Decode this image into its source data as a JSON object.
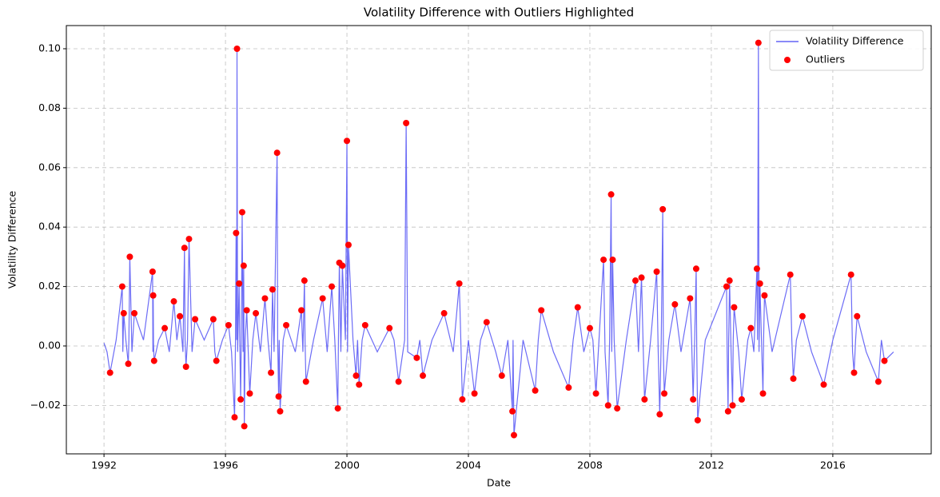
{
  "chart_data": {
    "type": "line",
    "title": "Volatility Difference with Outliers Highlighted",
    "x_label": "Date",
    "y_label": "Volatility Difference",
    "xlim": [
      1990.76,
      2019.24
    ],
    "xticks": [
      1992,
      1996,
      2000,
      2004,
      2008,
      2012,
      2016
    ],
    "ylim": [
      -0.0363,
      0.1078
    ],
    "yticks": [
      {
        "value": -0.02,
        "label": "−0.02"
      },
      {
        "value": 0,
        "label": "0.00"
      },
      {
        "value": 0.02,
        "label": "0.02"
      },
      {
        "value": 0.04,
        "label": "0.04"
      },
      {
        "value": 0.06,
        "label": "0.06"
      },
      {
        "value": 0.08,
        "label": "0.08"
      },
      {
        "value": 0.1,
        "label": "0.10"
      }
    ],
    "grid": true,
    "legend": "upper right",
    "series": [
      {
        "name": "Volatility Difference",
        "type": "line",
        "color": "#6464f5",
        "x": [
          1992.0,
          1992.1,
          1992.2,
          1992.4,
          1992.6,
          1992.62,
          1992.65,
          1992.72,
          1992.8,
          1992.82,
          1992.85,
          1992.92,
          1993.0,
          1993.3,
          1993.6,
          1993.61,
          1993.62,
          1993.63,
          1993.65,
          1993.8,
          1994.0,
          1994.15,
          1994.3,
          1994.4,
          1994.5,
          1994.6,
          1994.65,
          1994.67,
          1994.7,
          1994.75,
          1994.8,
          1994.9,
          1995.0,
          1995.3,
          1995.6,
          1995.65,
          1995.7,
          1995.9,
          1996.1,
          1996.2,
          1996.3,
          1996.33,
          1996.35,
          1996.37,
          1996.38,
          1996.4,
          1996.45,
          1996.47,
          1996.5,
          1996.52,
          1996.55,
          1996.58,
          1996.6,
          1996.61,
          1996.62,
          1996.65,
          1996.7,
          1996.75,
          1996.8,
          1996.9,
          1997.0,
          1997.15,
          1997.3,
          1997.4,
          1997.5,
          1997.52,
          1997.55,
          1997.6,
          1997.7,
          1997.72,
          1997.75,
          1997.77,
          1997.8,
          1997.9,
          1998.0,
          1998.3,
          1998.5,
          1998.55,
          1998.6,
          1998.62,
          1998.65,
          1998.9,
          1999.2,
          1999.35,
          1999.5,
          1999.6,
          1999.7,
          1999.72,
          1999.75,
          1999.8,
          1999.85,
          1999.95,
          2000.0,
          2000.02,
          2000.05,
          2000.2,
          2000.3,
          2000.35,
          2000.4,
          2000.5,
          2000.6,
          2001.0,
          2001.4,
          2001.55,
          2001.7,
          2001.9,
          2001.95,
          2002.0,
          2002.3,
          2002.4,
          2002.5,
          2002.8,
          2003.2,
          2003.5,
          2003.7,
          2003.75,
          2003.8,
          2004.0,
          2004.2,
          2004.4,
          2004.6,
          2004.9,
          2005.1,
          2005.3,
          2005.45,
          2005.47,
          2005.5,
          2005.8,
          2006.2,
          2006.3,
          2006.4,
          2006.8,
          2007.3,
          2007.45,
          2007.6,
          2007.8,
          2008.0,
          2008.1,
          2008.2,
          2008.3,
          2008.45,
          2008.5,
          2008.6,
          2008.65,
          2008.7,
          2008.72,
          2008.75,
          2008.8,
          2008.9,
          2009.2,
          2009.5,
          2009.6,
          2009.7,
          2009.75,
          2009.8,
          2010.0,
          2010.2,
          2010.25,
          2010.3,
          2010.35,
          2010.4,
          2010.42,
          2010.45,
          2010.6,
          2010.8,
          2011.0,
          2011.3,
          2011.35,
          2011.4,
          2011.45,
          2011.5,
          2011.52,
          2011.55,
          2011.8,
          2012.5,
          2012.52,
          2012.55,
          2012.57,
          2012.6,
          2012.65,
          2012.7,
          2012.72,
          2012.75,
          2012.9,
          2013.0,
          2013.2,
          2013.3,
          2013.4,
          2013.5,
          2013.52,
          2013.55,
          2013.57,
          2013.6,
          2013.65,
          2013.7,
          2013.72,
          2013.75,
          2014.0,
          2014.6,
          2014.65,
          2014.7,
          2014.8,
          2015.0,
          2015.3,
          2015.7,
          2016.0,
          2016.6,
          2016.65,
          2016.7,
          2016.75,
          2016.8,
          2017.1,
          2017.5,
          2017.6,
          2017.7,
          2018.0
        ],
        "values": [
          0.001,
          -0.002,
          -0.009,
          0.002,
          0.02,
          -0.002,
          0.011,
          0.002,
          -0.006,
          0.002,
          0.03,
          -0.002,
          0.011,
          0.002,
          0.025,
          -0.002,
          0.017,
          0.001,
          -0.005,
          0.002,
          0.006,
          -0.002,
          0.015,
          0.002,
          0.01,
          -0.002,
          0.033,
          0.002,
          -0.007,
          0.002,
          0.036,
          -0.002,
          0.009,
          0.002,
          0.009,
          -0.002,
          -0.005,
          0.002,
          0.007,
          -0.002,
          -0.024,
          0.002,
          0.038,
          0.002,
          0.1,
          -0.002,
          0.021,
          0.002,
          -0.018,
          0.002,
          0.045,
          -0.002,
          0.027,
          0.002,
          -0.027,
          0.002,
          0.012,
          -0.002,
          -0.016,
          0.002,
          0.011,
          -0.002,
          0.016,
          0.002,
          -0.009,
          0.002,
          0.019,
          -0.002,
          0.065,
          0.002,
          -0.017,
          0.002,
          -0.022,
          0.002,
          0.007,
          -0.002,
          0.012,
          -0.002,
          0.022,
          0.002,
          -0.012,
          0.002,
          0.016,
          -0.002,
          0.02,
          0.002,
          -0.021,
          0.002,
          0.028,
          -0.002,
          0.027,
          0.002,
          0.069,
          -0.002,
          0.034,
          0.002,
          -0.01,
          0.002,
          -0.013,
          0.002,
          0.007,
          -0.002,
          0.006,
          0.002,
          -0.012,
          0.002,
          0.075,
          -0.002,
          -0.004,
          0.002,
          -0.01,
          0.002,
          0.011,
          -0.002,
          0.021,
          0.002,
          -0.018,
          0.002,
          -0.016,
          0.002,
          0.008,
          -0.002,
          -0.01,
          0.002,
          -0.022,
          0.002,
          -0.03,
          0.002,
          -0.015,
          0.002,
          0.012,
          -0.002,
          -0.014,
          0.002,
          0.013,
          -0.002,
          0.006,
          0.002,
          -0.016,
          0.002,
          0.029,
          -0.002,
          -0.02,
          0.002,
          0.051,
          -0.002,
          0.029,
          0.002,
          -0.021,
          0.002,
          0.022,
          -0.002,
          0.023,
          0.002,
          -0.018,
          0.002,
          0.025,
          -0.002,
          -0.023,
          0.002,
          0.046,
          -0.002,
          -0.016,
          0.002,
          0.014,
          -0.002,
          0.016,
          0.002,
          -0.018,
          0.002,
          0.026,
          -0.002,
          -0.025,
          0.002,
          0.02,
          -0.002,
          -0.022,
          0.002,
          0.022,
          -0.002,
          -0.02,
          0.002,
          0.013,
          -0.002,
          -0.018,
          0.002,
          0.006,
          -0.002,
          0.026,
          0.002,
          0.102,
          -0.002,
          0.021,
          0.002,
          -0.016,
          0.002,
          0.017,
          -0.002,
          0.024,
          0.002,
          -0.011,
          0.002,
          0.01,
          -0.002,
          -0.013,
          0.002,
          0.024,
          -0.002,
          -0.009,
          0.002,
          0.01,
          -0.002,
          -0.012,
          0.002,
          -0.005,
          -0.002
        ]
      },
      {
        "name": "Outliers",
        "type": "scatter",
        "color": "#ff0000",
        "x": [
          1992.2,
          1992.6,
          1992.65,
          1992.8,
          1992.85,
          1993.0,
          1993.6,
          1993.62,
          1993.65,
          1994.0,
          1994.3,
          1994.5,
          1994.65,
          1994.7,
          1994.8,
          1995.0,
          1995.6,
          1995.7,
          1996.1,
          1996.3,
          1996.35,
          1996.38,
          1996.45,
          1996.5,
          1996.55,
          1996.6,
          1996.62,
          1996.7,
          1996.8,
          1997.0,
          1997.3,
          1997.5,
          1997.55,
          1997.7,
          1997.75,
          1997.8,
          1998.0,
          1998.5,
          1998.6,
          1998.65,
          1999.2,
          1999.5,
          1999.7,
          1999.75,
          1999.85,
          2000.0,
          2000.05,
          2000.3,
          2000.4,
          2000.6,
          2001.4,
          2001.7,
          2001.95,
          2002.3,
          2002.5,
          2003.2,
          2003.7,
          2003.8,
          2004.2,
          2004.6,
          2005.1,
          2005.45,
          2005.5,
          2006.2,
          2006.4,
          2007.3,
          2007.6,
          2008.0,
          2008.2,
          2008.45,
          2008.6,
          2008.7,
          2008.75,
          2008.9,
          2009.5,
          2009.7,
          2009.8,
          2010.2,
          2010.3,
          2010.4,
          2010.45,
          2010.8,
          2011.3,
          2011.4,
          2011.5,
          2011.55,
          2012.5,
          2012.55,
          2012.6,
          2012.7,
          2012.75,
          2013.0,
          2013.3,
          2013.5,
          2013.55,
          2013.6,
          2013.7,
          2013.75,
          2014.6,
          2014.7,
          2015.0,
          2015.7,
          2016.6,
          2016.7,
          2016.8,
          2017.5,
          2017.7
        ],
        "values": [
          -0.009,
          0.02,
          0.011,
          -0.006,
          0.03,
          0.011,
          0.025,
          0.017,
          -0.005,
          0.006,
          0.015,
          0.01,
          0.033,
          -0.007,
          0.036,
          0.009,
          0.009,
          -0.005,
          0.007,
          -0.024,
          0.038,
          0.1,
          0.021,
          -0.018,
          0.045,
          0.027,
          -0.027,
          0.012,
          -0.016,
          0.011,
          0.016,
          -0.009,
          0.019,
          0.065,
          -0.017,
          -0.022,
          0.007,
          0.012,
          0.022,
          -0.012,
          0.016,
          0.02,
          -0.021,
          0.028,
          0.027,
          0.069,
          0.034,
          -0.01,
          -0.013,
          0.007,
          0.006,
          -0.012,
          0.075,
          -0.004,
          -0.01,
          0.011,
          0.021,
          -0.018,
          -0.016,
          0.008,
          -0.01,
          -0.022,
          -0.03,
          -0.015,
          0.012,
          -0.014,
          0.013,
          0.006,
          -0.016,
          0.029,
          -0.02,
          0.051,
          0.029,
          -0.021,
          0.022,
          0.023,
          -0.018,
          0.025,
          -0.023,
          0.046,
          -0.016,
          0.014,
          0.016,
          -0.018,
          0.026,
          -0.025,
          0.02,
          -0.022,
          0.022,
          -0.02,
          0.013,
          -0.018,
          0.006,
          0.026,
          0.102,
          0.021,
          -0.016,
          0.017,
          0.024,
          -0.011,
          0.01,
          -0.013,
          0.024,
          -0.009,
          0.01,
          -0.012,
          -0.005
        ]
      }
    ]
  }
}
